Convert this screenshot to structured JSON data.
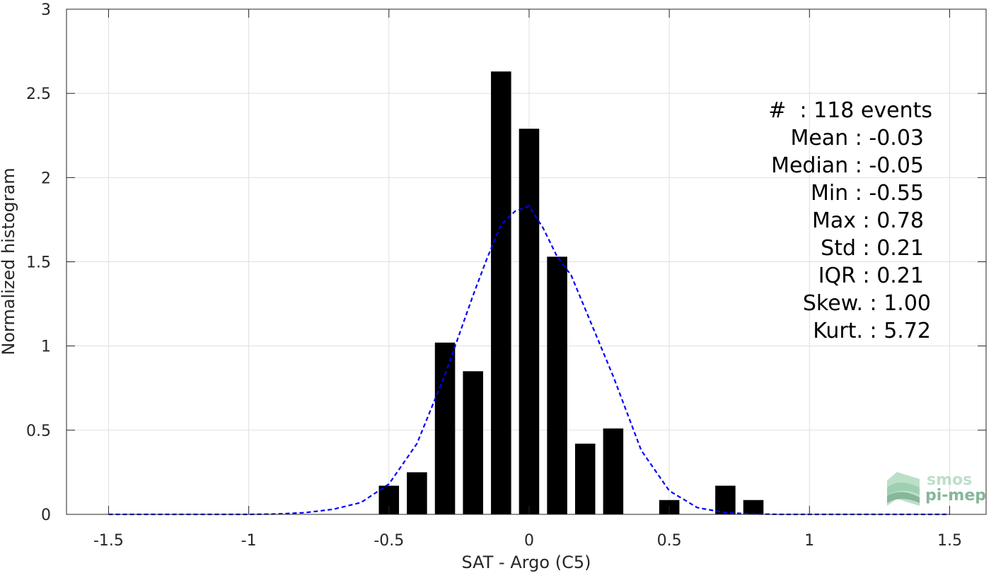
{
  "chart_data": {
    "type": "bar",
    "xlabel": "SAT - Argo (C5)",
    "ylabel": "Normalized histogram",
    "xlim": [
      -1.65,
      1.63
    ],
    "ylim": [
      0,
      3
    ],
    "grid": true,
    "x_ticks": [
      -1.5,
      -1,
      -0.5,
      0,
      0.5,
      1,
      1.5
    ],
    "x_tick_labels": [
      "-1.5",
      "-1",
      "-0.5",
      "0",
      "0.5",
      "1",
      "1.5"
    ],
    "y_ticks": [
      0,
      0.5,
      1,
      1.5,
      2,
      2.5,
      3
    ],
    "y_tick_labels": [
      "0",
      "0.5",
      "1",
      "1.5",
      "2",
      "2.5",
      "3"
    ],
    "bar_width": 0.072,
    "series": [
      {
        "values": [
          {
            "x": -0.5,
            "y": 0.17
          },
          {
            "x": -0.4,
            "y": 0.25
          },
          {
            "x": -0.3,
            "y": 1.02
          },
          {
            "x": -0.2,
            "y": 0.85
          },
          {
            "x": -0.1,
            "y": 2.63
          },
          {
            "x": 0.0,
            "y": 2.29
          },
          {
            "x": 0.1,
            "y": 1.53
          },
          {
            "x": 0.2,
            "y": 0.42
          },
          {
            "x": 0.3,
            "y": 0.51
          },
          {
            "x": 0.5,
            "y": 0.085
          },
          {
            "x": 0.7,
            "y": 0.17
          },
          {
            "x": 0.8,
            "y": 0.085
          }
        ],
        "color": "#000000"
      },
      {
        "type": "line",
        "style": "dashed",
        "color": "#0000ff",
        "x": [
          -1.5,
          -1.3,
          -1.1,
          -1.0,
          -0.9,
          -0.8,
          -0.7,
          -0.6,
          -0.5,
          -0.4,
          -0.3,
          -0.2,
          -0.15,
          -0.1,
          -0.05,
          0.0,
          0.05,
          0.1,
          0.15,
          0.2,
          0.3,
          0.4,
          0.5,
          0.6,
          0.7,
          0.8,
          0.9,
          1.0,
          1.2,
          1.5
        ],
        "y": [
          0,
          0,
          0,
          0,
          0.002,
          0.01,
          0.03,
          0.07,
          0.18,
          0.42,
          0.83,
          1.3,
          1.52,
          1.72,
          1.8,
          1.83,
          1.7,
          1.53,
          1.42,
          1.22,
          0.82,
          0.38,
          0.14,
          0.04,
          0.01,
          0.002,
          0,
          0,
          0,
          0
        ]
      }
    ]
  },
  "stats": [
    {
      "label": "#  : 118 events"
    },
    {
      "label": "Mean : -0.03"
    },
    {
      "label": "Median : -0.05"
    },
    {
      "label": "Min : -0.55"
    },
    {
      "label": "Max : 0.78"
    },
    {
      "label": "Std : 0.21"
    },
    {
      "label": "IQR : 0.21"
    },
    {
      "label": "Skew. : 1.00"
    },
    {
      "label": "Kurt. : 5.72"
    }
  ],
  "logo": {
    "line1": "smos",
    "line2": "pi-mep",
    "color_dark": "#5f9e7a",
    "color_light": "#a8d5b8"
  }
}
